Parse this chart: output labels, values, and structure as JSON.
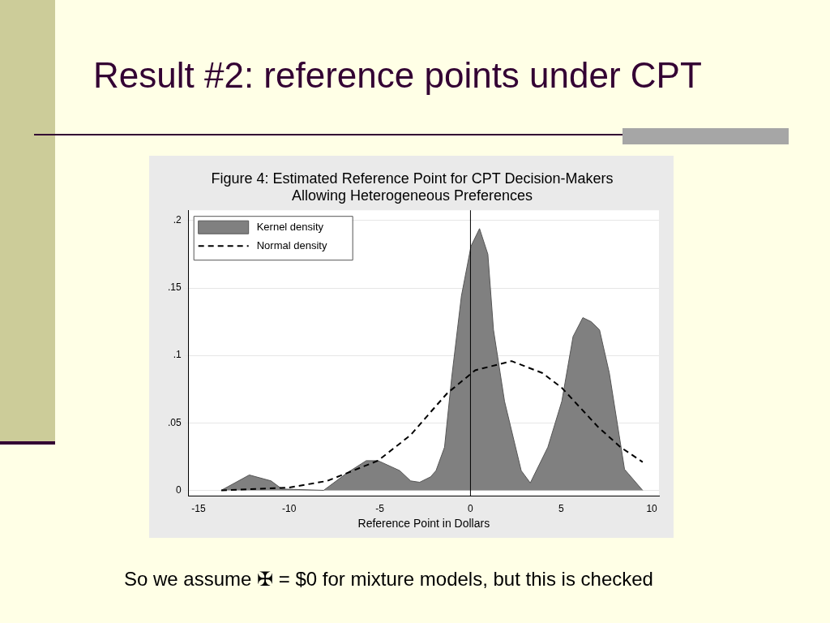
{
  "chart_data": {
    "type": "area",
    "title": "Figure 4: Estimated Reference Point for CPT Decision-Makers",
    "subtitle": "Allowing Heterogeneous Preferences",
    "xlabel": "Reference Point in Dollars",
    "annotations": [
      "Result #2: reference points under CPT",
      "So we assume ✠ = $0 for mixture models, but this is checked"
    ],
    "series": [
      {
        "name": "Kernel density",
        "color": "#808080",
        "x": [
          -13.75,
          -12.2,
          -11.0,
          -10.4,
          -8.1,
          -6.8,
          -5.75,
          -5.1,
          -3.9,
          -3.3,
          -2.8,
          -2.2,
          -1.9,
          -1.43,
          -1.04,
          -0.5,
          0.03,
          0.5,
          0.96,
          1.27,
          1.88,
          2.8,
          3.3,
          4.27,
          5.04,
          5.66,
          6.2,
          6.66,
          7.12,
          7.66,
          8.5,
          9.5
        ],
        "values": [
          0,
          0.0114,
          0.007,
          0.001,
          0,
          0.013,
          0.022,
          0.022,
          0.0146,
          0.007,
          0.006,
          0.01,
          0.0146,
          0.032,
          0.083,
          0.144,
          0.181,
          0.194,
          0.175,
          0.119,
          0.066,
          0.0146,
          0.0055,
          0.032,
          0.066,
          0.114,
          0.128,
          0.125,
          0.119,
          0.087,
          0.0156,
          0
        ]
      },
      {
        "name": "Normal density",
        "type": "line",
        "color": "#000000",
        "line_style": "dashed",
        "x": [
          -13.75,
          -10.05,
          -7.9,
          -5.1,
          -3.3,
          -2.2,
          -1.28,
          0.26,
          2.27,
          3.96,
          5.04,
          7.04,
          8.28,
          9.5
        ],
        "values": [
          0,
          0.002,
          0.007,
          0.022,
          0.041,
          0.058,
          0.072,
          0.089,
          0.0958,
          0.087,
          0.076,
          0.047,
          0.032,
          0.021
        ]
      }
    ],
    "xlim": [
      -15.55,
      10.4
    ],
    "xticks": [
      -15,
      -10,
      -5,
      0,
      5,
      10
    ],
    "ylim": [
      -0.0044,
      0.2076
    ],
    "yticks": [
      {
        "value": 0,
        "label": "0"
      },
      {
        "value": 0.05,
        "label": ".05"
      },
      {
        "value": 0.1,
        "label": ".1"
      },
      {
        "value": 0.15,
        "label": ".15"
      },
      {
        "value": 0.2,
        "label": ".2"
      }
    ],
    "ref_lines": [
      {
        "axis": "x",
        "value": 0,
        "color": "#000000"
      }
    ],
    "grid": "y",
    "legend": "top left"
  }
}
